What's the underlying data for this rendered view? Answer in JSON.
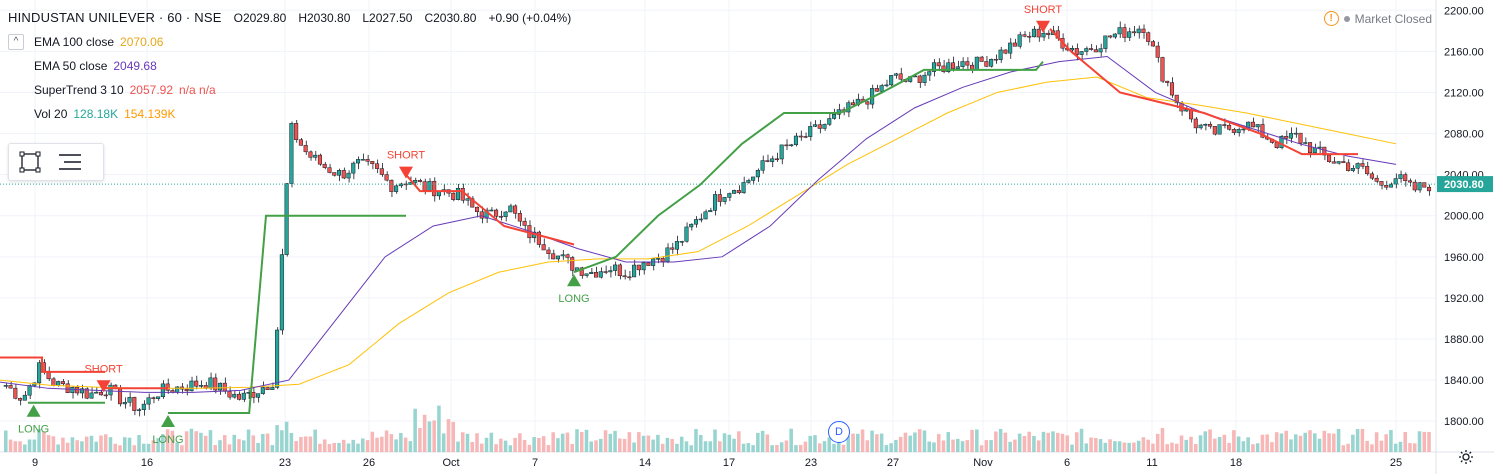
{
  "header": {
    "symbol": "HINDUSTAN UNILEVER · 60 · NSE",
    "open": "O2029.80",
    "high": "H2030.80",
    "low": "L2027.50",
    "close": "C2030.80",
    "change": "+0.90 (+0.04%)"
  },
  "indicators": [
    {
      "label": "EMA 100 close",
      "value": "2070.06",
      "color": "#e6a817"
    },
    {
      "label": "EMA 50 close",
      "value": "2049.68",
      "color": "#673ab7"
    },
    {
      "label": "SuperTrend 3 10",
      "value": "2057.92",
      "extra": "n/a n/a",
      "color": "#ef5350"
    },
    {
      "label": "Vol 20",
      "value": "128.18K",
      "value2": "154.139K",
      "color": "#26a69a",
      "color2": "#ff9800"
    }
  ],
  "market_status": "Market Closed",
  "date_marker": "D",
  "toolbar": {
    "icons": [
      "square-icon",
      "list-icon"
    ]
  },
  "colors": {
    "up": "#26a69a",
    "down": "#ef5350",
    "supertrend_up": "#43a047",
    "supertrend_down": "#f44336",
    "ema100": "#ffc107",
    "ema50": "#673ab7",
    "vol_up": "#80cbc4",
    "vol_down": "#f6a5a5"
  },
  "chart_data": {
    "type": "candlestick",
    "title": "HINDUSTAN UNILEVER · 60 · NSE",
    "y_axis": {
      "min": 1770,
      "max": 2210,
      "ticks": [
        1800,
        1840,
        1880,
        1920,
        1960,
        2000,
        2040,
        2080,
        2120,
        2160,
        2200
      ],
      "position": "right"
    },
    "last_price": 2030.8,
    "x_ticks": [
      "9",
      "16",
      "23",
      "26",
      "Oct",
      "7",
      "14",
      "17",
      "23",
      "27",
      "Nov",
      "6",
      "11",
      "18",
      "25"
    ],
    "price_path": [
      1835,
      1822,
      1852,
      1835,
      1833,
      1826,
      1832,
      1820,
      1812,
      1828,
      1832,
      1835,
      1838,
      1830,
      1822,
      1830,
      1840,
      2085,
      2060,
      2048,
      2040,
      2050,
      2045,
      2030,
      2035,
      2028,
      2025,
      2020,
      2005,
      2000,
      2010,
      1985,
      1975,
      1960,
      1950,
      1945,
      1950,
      1945,
      1955,
      1960,
      1970,
      1990,
      2010,
      2025,
      2030,
      2045,
      2060,
      2070,
      2080,
      2090,
      2100,
      2110,
      2120,
      2135,
      2130,
      2140,
      2145,
      2150,
      2148,
      2155,
      2165,
      2175,
      2180,
      2170,
      2160,
      2165,
      2175,
      2180,
      2185,
      2140,
      2110,
      2090,
      2080,
      2085,
      2090,
      2080,
      2070,
      2078,
      2065,
      2055,
      2050,
      2045,
      2030,
      2038,
      2025,
      2030
    ],
    "ema100_path": [
      1840,
      1835,
      1833,
      1832,
      1832,
      1833,
      1836,
      1855,
      1895,
      1925,
      1945,
      1955,
      1958,
      1958,
      1965,
      1990,
      2020,
      2050,
      2075,
      2100,
      2120,
      2130,
      2135,
      2115,
      2108,
      2100,
      2090,
      2080,
      2070
    ],
    "ema50_path": [
      1838,
      1832,
      1830,
      1828,
      1828,
      1830,
      1840,
      1900,
      1960,
      1990,
      2000,
      1985,
      1968,
      1955,
      1955,
      1960,
      1990,
      2035,
      2075,
      2105,
      2125,
      2140,
      2150,
      2155,
      2120,
      2100,
      2085,
      2070,
      2058,
      2050
    ],
    "supertrend": [
      {
        "dir": "down",
        "points": [
          [
            0,
            1862
          ],
          [
            0.03,
            1862
          ],
          [
            0.03,
            1848
          ],
          [
            0.075,
            1848
          ]
        ]
      },
      {
        "dir": "up",
        "points": [
          [
            0.02,
            1818
          ],
          [
            0.075,
            1818
          ]
        ]
      },
      {
        "dir": "down",
        "points": [
          [
            0.075,
            1832
          ],
          [
            0.12,
            1832
          ]
        ]
      },
      {
        "dir": "up",
        "points": [
          [
            0.12,
            1808
          ],
          [
            0.178,
            1808
          ],
          [
            0.19,
            2000
          ],
          [
            0.29,
            2000
          ]
        ]
      },
      {
        "dir": "down",
        "points": [
          [
            0.29,
            2040
          ],
          [
            0.3,
            2024
          ],
          [
            0.33,
            2024
          ],
          [
            0.36,
            1990
          ],
          [
            0.41,
            1972
          ],
          [
            0.41,
            1972
          ]
        ]
      },
      {
        "dir": "up",
        "points": [
          [
            0.41,
            1945
          ],
          [
            0.44,
            1960
          ],
          [
            0.47,
            2000
          ],
          [
            0.5,
            2030
          ],
          [
            0.53,
            2070
          ],
          [
            0.56,
            2100
          ],
          [
            0.6,
            2100
          ],
          [
            0.63,
            2120
          ],
          [
            0.66,
            2142
          ],
          [
            0.74,
            2142
          ],
          [
            0.745,
            2150
          ]
        ]
      },
      {
        "dir": "down",
        "points": [
          [
            0.75,
            2182
          ],
          [
            0.765,
            2160
          ],
          [
            0.8,
            2120
          ],
          [
            0.86,
            2100
          ],
          [
            0.9,
            2080
          ],
          [
            0.93,
            2060
          ],
          [
            0.97,
            2060
          ]
        ]
      }
    ],
    "signals": [
      {
        "type": "LONG",
        "x": 0.024
      },
      {
        "type": "SHORT",
        "x": 0.074
      },
      {
        "type": "LONG",
        "x": 0.12
      },
      {
        "type": "SHORT",
        "x": 0.29
      },
      {
        "type": "LONG",
        "x": 0.41
      },
      {
        "type": "SHORT",
        "x": 0.745
      }
    ],
    "volume_max": 3000
  }
}
